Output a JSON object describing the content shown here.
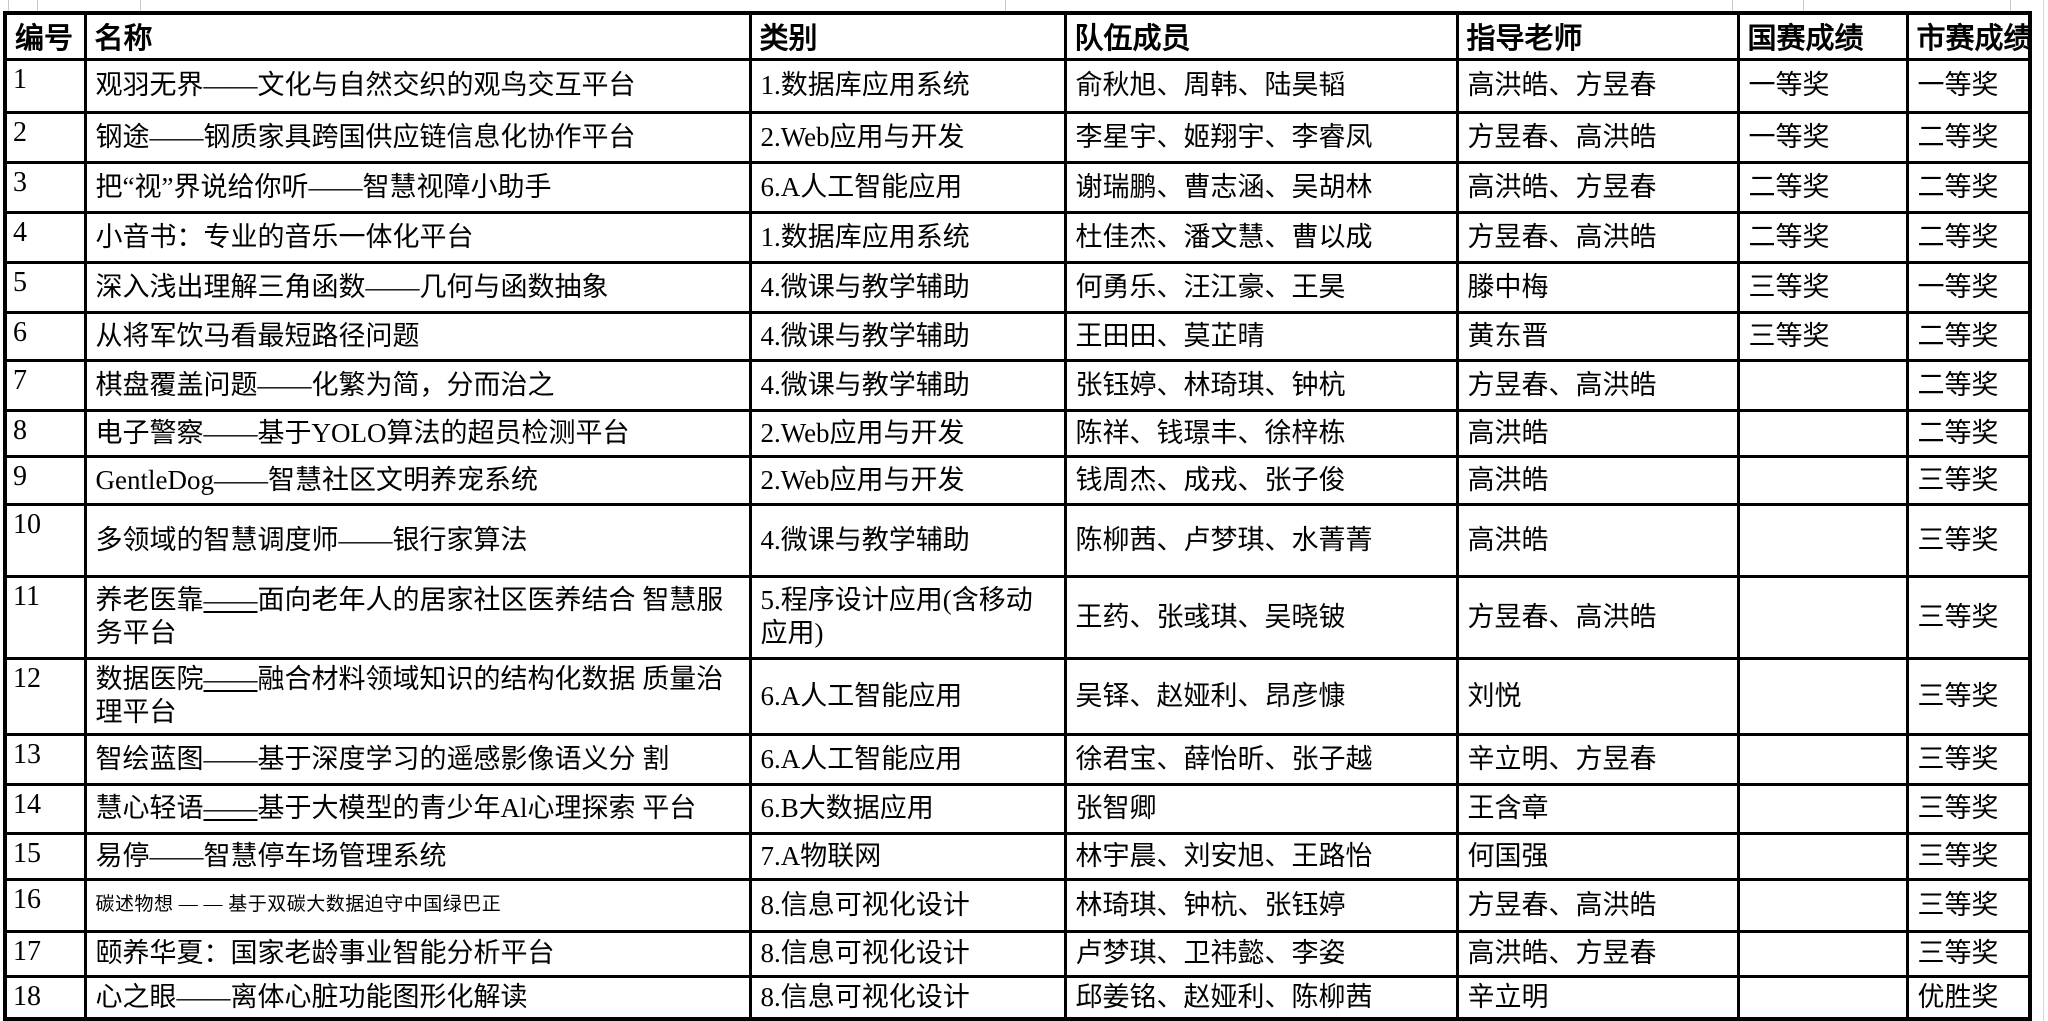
{
  "table": {
    "columns": [
      {
        "key": "id",
        "label": "编号"
      },
      {
        "key": "name",
        "label": "名称"
      },
      {
        "key": "category",
        "label": "类别"
      },
      {
        "key": "members",
        "label": "队伍成员"
      },
      {
        "key": "advisors",
        "label": "指导老师"
      },
      {
        "key": "national",
        "label": "国赛成绩"
      },
      {
        "key": "city",
        "label": "市赛成绩"
      }
    ],
    "rows": [
      {
        "id": "1",
        "name": "观羽无界——文化与自然交织的观鸟交互平台",
        "category": "1.数据库应用系统",
        "members": "俞秋旭、周韩、陆昊韬",
        "advisors": "高洪皓、方昱春",
        "national": "一等奖",
        "city": "一等奖"
      },
      {
        "id": "2",
        "name": "钢途——钢质家具跨国供应链信息化协作平台",
        "category": "2.Web应用与开发",
        "members": "李星宇、姬翔宇、李睿凤",
        "advisors": "方昱春、高洪皓",
        "national": "一等奖",
        "city": "二等奖"
      },
      {
        "id": "3",
        "name": "把“视”界说给你听——智慧视障小助手",
        "category": "6.A人工智能应用",
        "members": "谢瑞鹏、曹志涵、吴胡林",
        "advisors": "高洪皓、方昱春",
        "national": "二等奖",
        "city": "二等奖"
      },
      {
        "id": "4",
        "name": "小音书：专业的音乐一体化平台",
        "category": "1.数据库应用系统",
        "members": "杜佳杰、潘文慧、曹以成",
        "advisors": "方昱春、高洪皓",
        "national": "二等奖",
        "city": "二等奖"
      },
      {
        "id": "5",
        "name": "深入浅出理解三角函数——几何与函数抽象",
        "category": "4.微课与教学辅助",
        "members": "何勇乐、汪江豪、王昊",
        "advisors": "滕中梅",
        "national": "三等奖",
        "city": "一等奖"
      },
      {
        "id": "6",
        "name": "从将军饮马看最短路径问题",
        "category": "4.微课与教学辅助",
        "members": "王田田、莫芷晴",
        "advisors": "黄东晋",
        "national": "三等奖",
        "city": "二等奖"
      },
      {
        "id": "7",
        "name": "棋盘覆盖问题——化繁为简，分而治之",
        "category": "4.微课与教学辅助",
        "members": "张钰婷、林琦琪、钟杭",
        "advisors": "方昱春、高洪皓",
        "national": "",
        "city": "二等奖"
      },
      {
        "id": "8",
        "name": "电子警察——基于YOLO算法的超员检测平台",
        "category": "2.Web应用与开发",
        "members": "陈祥、钱璟丰、徐梓栋",
        "advisors": "高洪皓",
        "national": "",
        "city": "二等奖"
      },
      {
        "id": "9",
        "name": "GentleDog——智慧社区文明养宠系统",
        "category": "2.Web应用与开发",
        "members": "钱周杰、成戎、张子俊",
        "advisors": "高洪皓",
        "national": "",
        "city": "三等奖"
      },
      {
        "id": "10",
        "name": "多领域的智慧调度师——银行家算法",
        "category": "4.微课与教学辅助",
        "members": "陈柳茜、卢梦琪、水菁菁",
        "advisors": "高洪皓",
        "national": "",
        "city": "三等奖"
      },
      {
        "id": "11",
        "name": "养老医靠——面向老年人的居家社区医养结合 智慧服务平台",
        "dash_underlined": true,
        "category": "5.程序设计应用(含移动应用)",
        "members": "王药、张彧琪、吴晓铍",
        "advisors": "方昱春、高洪皓",
        "national": "",
        "city": "三等奖"
      },
      {
        "id": "12",
        "name": "数据医院——融合材料领域知识的结构化数据 质量治理平台",
        "dash_underlined": true,
        "category": "6.A人工智能应用",
        "members": "吴铎、赵娅利、昂彦慷",
        "advisors": "刘悦",
        "national": "",
        "city": "三等奖"
      },
      {
        "id": "13",
        "name": "智绘蓝图——基于深度学习的遥感影像语义分 割",
        "category": "6.A人工智能应用",
        "members": "徐君宝、薛怡昕、张子越",
        "advisors": "辛立明、方昱春",
        "national": "",
        "city": "三等奖"
      },
      {
        "id": "14",
        "name": "慧心轻语——基于大模型的青少年Al心理探索 平台",
        "dash_underlined": true,
        "category": "6.B大数据应用",
        "members": "张智卿",
        "advisors": "王含章",
        "national": "",
        "city": "三等奖"
      },
      {
        "id": "15",
        "name": "易停——智慧停车场管理系统",
        "category": "7.A物联网",
        "members": "林宇晨、刘安旭、王路怡",
        "advisors": "何国强",
        "national": "",
        "city": "三等奖"
      },
      {
        "id": "16",
        "name": "碳述物想 — — 基于双碳大数据迫守中国绿巴正",
        "small_font": true,
        "category": "8.信息可视化设计",
        "members": "林琦琪、钟杭、张钰婷",
        "advisors": "方昱春、高洪皓",
        "national": "",
        "city": "三等奖"
      },
      {
        "id": "17",
        "name": "颐养华夏：国家老龄事业智能分析平台",
        "category": "8.信息可视化设计",
        "members": "卢梦琪、卫祎懿、李姿",
        "advisors": "高洪皓、方昱春",
        "national": "",
        "city": "三等奖"
      },
      {
        "id": "18",
        "name": "心之眼——离体心脏功能图形化解读",
        "category": "8.信息可视化设计",
        "members": "邱姜铭、赵娅利、陈柳茜",
        "advisors": "辛立明",
        "national": "",
        "city": "优胜奖"
      }
    ]
  },
  "colors": {
    "table_border": "#000000",
    "background": "#ffffff",
    "gridline": "#c9c9c9"
  }
}
